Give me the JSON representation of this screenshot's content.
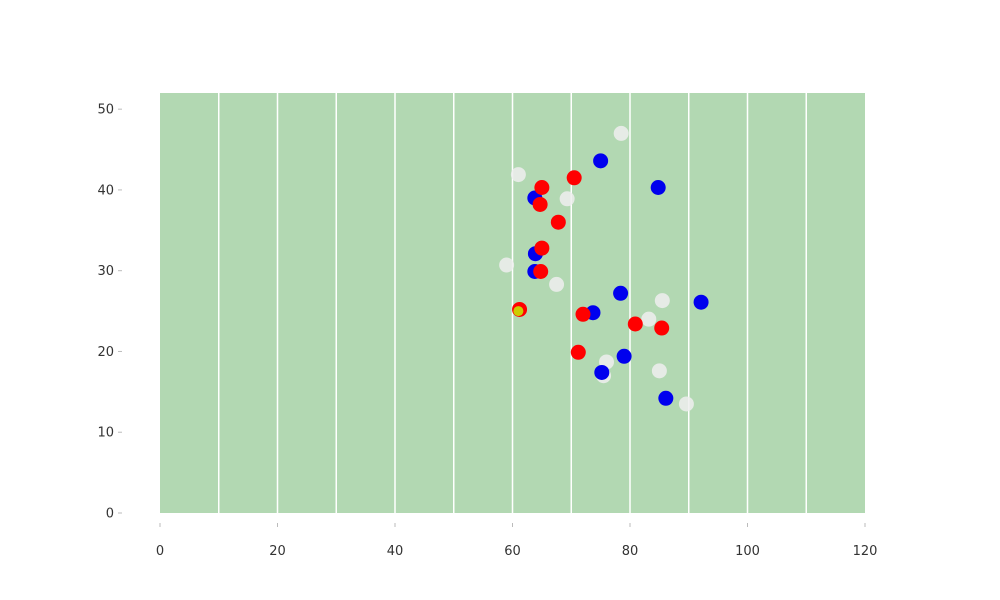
{
  "chart_data": {
    "type": "scatter",
    "title": "",
    "xlabel": "",
    "ylabel": "",
    "xlim": [
      0,
      120
    ],
    "ylim": [
      0,
      52
    ],
    "xticks": [
      "0",
      "20",
      "40",
      "60",
      "80",
      "100",
      "120"
    ],
    "yticks": [
      "0",
      "10",
      "20",
      "30",
      "40",
      "50"
    ],
    "field_color": "#b2d8b2",
    "yard_lines": [
      10,
      20,
      30,
      40,
      50,
      60,
      70,
      80,
      90,
      100,
      110
    ],
    "series": [
      {
        "color": "#eeeeee",
        "points": [
          [
            78.5,
            47.0
          ],
          [
            61.0,
            41.9
          ],
          [
            69.3,
            38.9
          ],
          [
            59.0,
            30.7
          ],
          [
            67.5,
            28.3
          ],
          [
            85.5,
            26.3
          ],
          [
            83.2,
            24.0
          ],
          [
            76.0,
            18.7
          ],
          [
            85.0,
            17.6
          ],
          [
            75.5,
            17.0
          ],
          [
            89.6,
            13.5
          ]
        ]
      },
      {
        "color": "#0000ee",
        "points": [
          [
            75.0,
            43.6
          ],
          [
            84.8,
            40.3
          ],
          [
            63.8,
            39.0
          ],
          [
            63.9,
            32.1
          ],
          [
            63.8,
            29.9
          ],
          [
            78.4,
            27.2
          ],
          [
            92.1,
            26.1
          ],
          [
            73.7,
            24.8
          ],
          [
            79.0,
            19.4
          ],
          [
            75.2,
            17.4
          ],
          [
            86.1,
            14.2
          ]
        ]
      },
      {
        "color": "#ff0000",
        "points": [
          [
            70.5,
            41.5
          ],
          [
            65.0,
            40.3
          ],
          [
            64.7,
            38.2
          ],
          [
            67.8,
            36.0
          ],
          [
            65.0,
            32.8
          ],
          [
            64.8,
            29.9
          ],
          [
            61.2,
            25.2
          ],
          [
            72.0,
            24.6
          ],
          [
            80.9,
            23.4
          ],
          [
            85.4,
            22.9
          ],
          [
            71.2,
            19.9
          ]
        ]
      },
      {
        "color": "#cccc00",
        "points": [
          [
            61.0,
            25.0
          ]
        ]
      }
    ]
  }
}
